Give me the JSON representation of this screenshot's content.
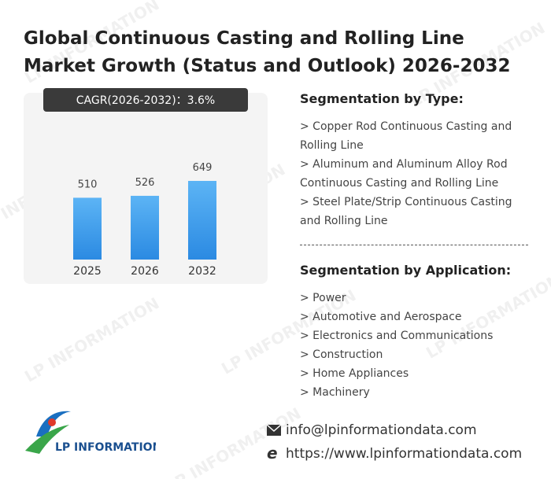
{
  "header": {
    "title": "Global Continuous Casting and Rolling Line Market Growth (Status and Outlook) 2026-2032"
  },
  "chart_data": {
    "type": "bar",
    "annotation": "CAGR(2026-2032)：3.6%",
    "categories": [
      "2025",
      "2026",
      "2032"
    ],
    "values": [
      510,
      526,
      649
    ],
    "color": "#2b8ae2"
  },
  "segments": [
    {
      "title": "Segmentation by Type:",
      "items": [
        "> Copper Rod Continuous Casting and Rolling Line",
        "> Aluminum and Aluminum Alloy Rod Continuous Casting and Rolling Line",
        "> Steel Plate/Strip Continuous Casting and Rolling Line"
      ]
    },
    {
      "title": "Segmentation by Application:",
      "items": [
        "> Power",
        "> Automotive and Aerospace",
        "> Electronics and Communications",
        "> Construction",
        "> Home Appliances",
        "> Machinery"
      ]
    }
  ],
  "footer": {
    "logo": "LP INFORMATION",
    "email": "info@lpinformationdata.com",
    "website": "https://www.lpinformationdata.com"
  },
  "watermark": "LP INFORMATION"
}
